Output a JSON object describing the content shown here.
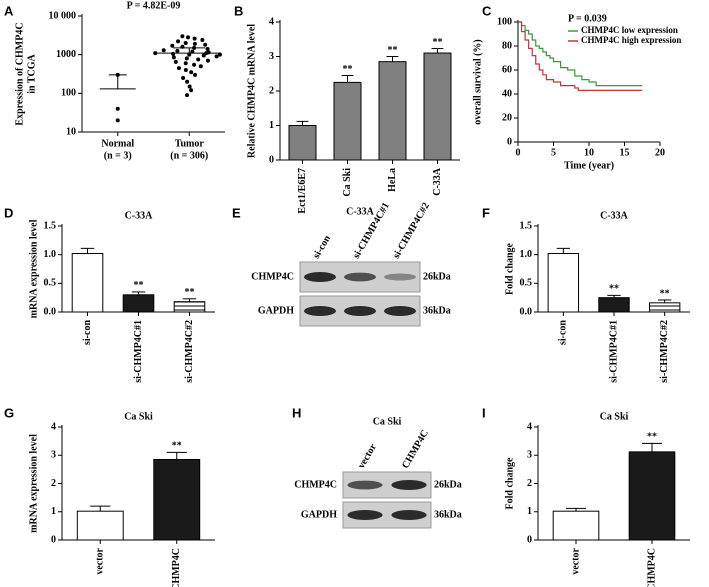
{
  "chart_data": [
    {
      "panel": "A",
      "type": "dot",
      "title": "P = 4.82E-09",
      "ylabel": [
        "Expression of CHMP4C",
        "in TCGA"
      ],
      "categories": [
        "Normal",
        "Tumor"
      ],
      "category_notes": [
        "(n = 3)",
        "(n = 306)"
      ],
      "values": [
        [
          300,
          40,
          20
        ],
        [
          90,
          120,
          150,
          200,
          250,
          300,
          350,
          400,
          450,
          500,
          550,
          600,
          650,
          700,
          750,
          800,
          850,
          900,
          950,
          1000,
          1050,
          1100,
          1150,
          1200,
          1250,
          1300,
          1400,
          1500,
          1600,
          1700,
          1800,
          1900,
          2000,
          2200,
          2400,
          2600,
          2800,
          3000,
          1000,
          1100
        ]
      ],
      "means": [
        130,
        1100
      ],
      "errors": [
        170,
        400
      ],
      "color": "#000000",
      "log_y": true,
      "ylim": [
        10,
        10000
      ],
      "yticks": [
        10,
        100,
        1000,
        {
          "value": 10000,
          "label": "10 000"
        }
      ]
    },
    {
      "panel": "B",
      "type": "bar",
      "ylabel": [
        "Relative CHMP4C mRNA level"
      ],
      "categories": [
        "Ect1/E6E7",
        "Ca Ski",
        "HeLa",
        "C-33A"
      ],
      "values": [
        1,
        2.25,
        2.85,
        3.1
      ],
      "errors": [
        0.12,
        0.2,
        0.15,
        0.13
      ],
      "annotations": [
        null,
        "**",
        "**",
        "**"
      ],
      "colors": [
        "#808080",
        "#808080",
        "#808080",
        "#808080"
      ],
      "hatch": [
        false,
        false,
        false,
        false
      ],
      "ylim": [
        0,
        4
      ],
      "yticks": [
        0,
        1,
        2,
        3,
        4
      ]
    },
    {
      "panel": "C",
      "type": "survival",
      "ylabel": [
        "overall survival (%)"
      ],
      "xlabel": "Time (year)",
      "annotation": "P = 0.039",
      "series": [
        {
          "name": "CHMP4C low expression",
          "color": "#3a9a3a",
          "x": [
            0,
            0.5,
            1,
            1.5,
            2,
            2.5,
            3,
            3.5,
            4,
            4.5,
            5,
            6,
            7,
            8,
            9,
            10,
            11,
            17.5
          ],
          "values": [
            100,
            97,
            93,
            90,
            85,
            80,
            78,
            75,
            72,
            70,
            67,
            62,
            60,
            55,
            52,
            50,
            47,
            47
          ]
        },
        {
          "name": "CHMP4C high expression",
          "color": "#c0343a",
          "x": [
            0,
            0.5,
            1,
            1.5,
            2,
            2.5,
            3,
            3.5,
            4,
            5,
            6,
            8,
            8.5,
            17.5
          ],
          "values": [
            100,
            92,
            85,
            78,
            72,
            65,
            60,
            56,
            52,
            50,
            47,
            45,
            43,
            43
          ]
        }
      ],
      "xlim": [
        0,
        20
      ],
      "xticks": [
        0,
        5,
        10,
        15,
        20
      ],
      "ylim": [
        0,
        100
      ],
      "yticks": [
        0,
        20,
        40,
        60,
        80,
        100
      ]
    },
    {
      "panel": "D",
      "type": "bar",
      "title": "C-33A",
      "ylabel": [
        "mRNA expression level"
      ],
      "categories": [
        "si-con",
        "si-CHMP4C#1",
        "si-CHMP4C#2"
      ],
      "values": [
        1.02,
        0.3,
        0.18
      ],
      "errors": [
        0.09,
        0.05,
        0.05
      ],
      "annotations": [
        null,
        "**",
        "**"
      ],
      "colors": [
        "#ffffff",
        "#1a1a1a",
        "#ffffff"
      ],
      "hatch": [
        false,
        false,
        true
      ],
      "ylim": [
        0,
        1.5
      ],
      "yticks": [
        {
          "value": 0,
          "label": "0.0"
        },
        0.5,
        {
          "value": 1,
          "label": "1.0"
        },
        1.5
      ]
    },
    {
      "panel": "F",
      "type": "bar",
      "title": "C-33A",
      "ylabel": [
        "Fold change"
      ],
      "categories": [
        "si-con",
        "si-CHMP4C#1",
        "si-CHMP4C#2"
      ],
      "values": [
        1.02,
        0.25,
        0.16
      ],
      "errors": [
        0.09,
        0.04,
        0.05
      ],
      "annotations": [
        null,
        "**",
        "**"
      ],
      "colors": [
        "#ffffff",
        "#1a1a1a",
        "#ffffff"
      ],
      "hatch": [
        false,
        false,
        true
      ],
      "ylim": [
        0,
        1.5
      ],
      "yticks": [
        {
          "value": 0,
          "label": "0.0"
        },
        0.5,
        {
          "value": 1,
          "label": "1.0"
        },
        1.5
      ]
    },
    {
      "panel": "G",
      "type": "bar",
      "title": "Ca Ski",
      "ylabel": [
        "mRNA expression level"
      ],
      "categories": [
        "vector",
        "CHMP4C"
      ],
      "values": [
        1.02,
        2.85
      ],
      "errors": [
        0.18,
        0.25
      ],
      "annotations": [
        null,
        "**"
      ],
      "colors": [
        "#ffffff",
        "#1a1a1a"
      ],
      "hatch": [
        false,
        false
      ],
      "ylim": [
        0,
        4
      ],
      "yticks": [
        0,
        1,
        2,
        3,
        4
      ]
    },
    {
      "panel": "I",
      "type": "bar",
      "title": "Ca Ski",
      "ylabel": [
        "Fold change"
      ],
      "categories": [
        "vector",
        "CHMP4C"
      ],
      "values": [
        1.02,
        3.12
      ],
      "errors": [
        0.1,
        0.3
      ],
      "annotations": [
        null,
        "**"
      ],
      "colors": [
        "#ffffff",
        "#1a1a1a"
      ],
      "hatch": [
        false,
        false
      ],
      "ylim": [
        0,
        4
      ],
      "yticks": [
        0,
        1,
        2,
        3,
        4
      ]
    }
  ],
  "blots": [
    {
      "panel": "E",
      "title": "C-33A",
      "lanes": [
        "si-con",
        "si-CHMP4C#1",
        "si-CHMP4C#2"
      ],
      "rows": [
        {
          "protein": "CHMP4C",
          "size": "26kDa"
        },
        {
          "protein": "GAPDH",
          "size": "36kDa"
        }
      ]
    },
    {
      "panel": "H",
      "title": "Ca Ski",
      "lanes": [
        "vector",
        "CHMP4C"
      ],
      "rows": [
        {
          "protein": "CHMP4C",
          "size": "26kDa"
        },
        {
          "protein": "GAPDH",
          "size": "36kDa"
        }
      ]
    }
  ]
}
